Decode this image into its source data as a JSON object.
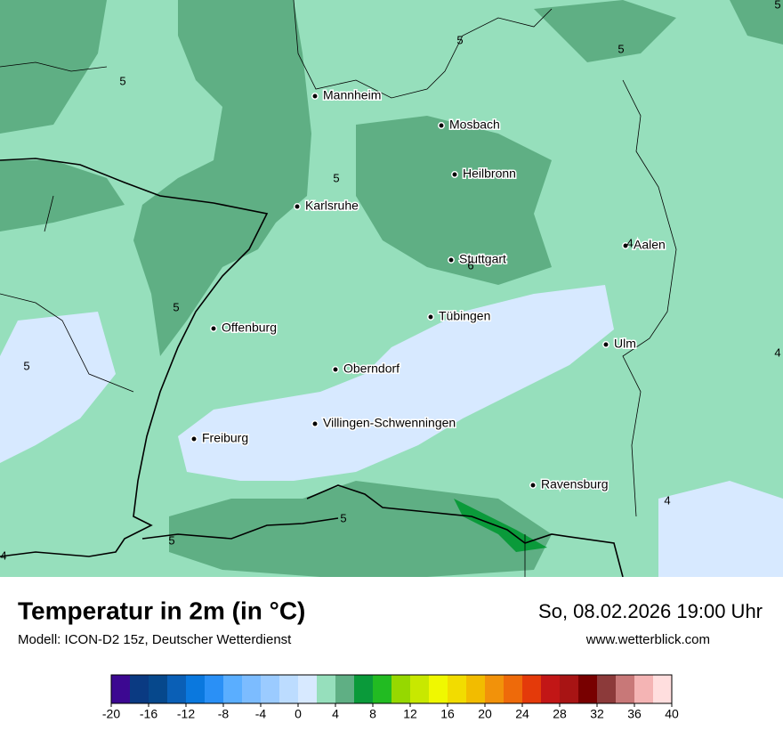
{
  "map": {
    "cities": [
      "Mannheim",
      "Mosbach",
      "Heilbronn",
      "Karlsruhe",
      "Aalen",
      "Stuttgart",
      "Tübingen",
      "Offenburg",
      "Ulm",
      "Oberndorf",
      "Villingen-Schwenningen",
      "Freiburg",
      "Ravensburg"
    ],
    "contour_labels": [
      5,
      5,
      5,
      5,
      5,
      5,
      5,
      4,
      4,
      6,
      4,
      5,
      5,
      4
    ]
  },
  "footer": {
    "title": "Temperatur in 2m (in °C)",
    "model": "Modell: ICON-D2 15z, Deutscher Wetterdienst",
    "datetime": "So, 08.02.2026 19:00 Uhr",
    "website": "www.wetterblick.com"
  },
  "legend": {
    "lim": [
      -20,
      40
    ],
    "ticks": [
      -20,
      -16,
      -12,
      -8,
      -4,
      0,
      4,
      8,
      12,
      16,
      20,
      24,
      28,
      32,
      36,
      40
    ],
    "colors": [
      "#3c0891",
      "#0a3a82",
      "#06488c",
      "#0a5fb6",
      "#0a78de",
      "#2a90f6",
      "#5aaeff",
      "#7cbcff",
      "#9bcbff",
      "#bcdcff",
      "#d7e9ff",
      "#96dfbc",
      "#5faf84",
      "#0a9a3a",
      "#22bb22",
      "#96d800",
      "#c8e800",
      "#f0f800",
      "#f2dc00",
      "#f2bc00",
      "#f2920a",
      "#ee6a0a",
      "#e43a0a",
      "#c21616",
      "#a81414",
      "#780000",
      "#8c3a3a",
      "#c87878",
      "#f4b4b4",
      "#ffdede"
    ]
  }
}
